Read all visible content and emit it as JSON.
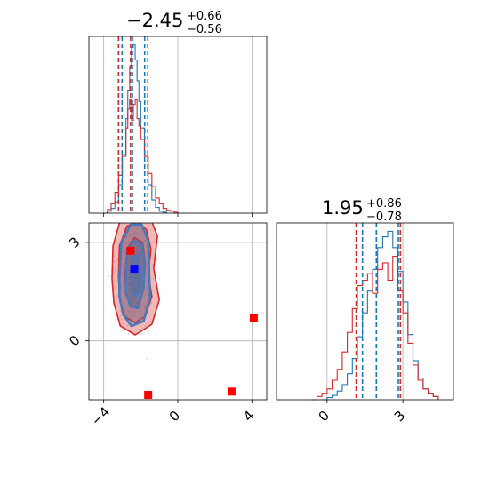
{
  "chart_data": {
    "type": "corner",
    "colors": {
      "series_a": "#1f77b4",
      "series_b": "#d62728",
      "marker_b": "#ff0000",
      "marker_a": "#0000ff",
      "grid": "#b0b0b0"
    },
    "parameters": [
      {
        "title": {
          "median": "−2.45",
          "upper": "+0.66",
          "lower": "−0.56"
        },
        "xlim": [
          -4.8,
          4.8
        ],
        "xticks": [
          -4,
          0,
          4
        ],
        "quantiles": {
          "series_a": [
            -3.01,
            -2.45,
            -1.79
          ],
          "series_b": [
            -3.2,
            -2.55,
            -1.62
          ]
        },
        "histogram": {
          "series_a": {
            "x": [
              -4.0,
              -3.8,
              -3.6,
              -3.4,
              -3.2,
              -3.0,
              -2.8,
              -2.7,
              -2.6,
              -2.5,
              -2.4,
              -2.3,
              -2.2,
              -2.1,
              -2.0,
              -1.8,
              -1.6,
              -1.4,
              -1.2,
              -1.0,
              -0.8,
              -0.6
            ],
            "y": [
              0,
              2,
              5,
              12,
              30,
              60,
              100,
              130,
              155,
              175,
              178,
              162,
              140,
              118,
              90,
              60,
              30,
              14,
              6,
              2,
              1,
              0
            ]
          },
          "series_b": {
            "x": [
              -4.0,
              -3.8,
              -3.6,
              -3.4,
              -3.2,
              -3.0,
              -2.8,
              -2.7,
              -2.6,
              -2.5,
              -2.4,
              -2.3,
              -2.2,
              -2.1,
              -2.0,
              -1.8,
              -1.6,
              -1.4,
              -1.2,
              -1.0,
              -0.8,
              -0.6,
              -0.4,
              -0.2,
              0.0
            ],
            "y": [
              0,
              4,
              10,
              22,
              40,
              62,
              90,
              110,
              120,
              98,
              115,
              120,
              100,
              92,
              78,
              60,
              42,
              28,
              16,
              10,
              5,
              3,
              2,
              1,
              0
            ]
          }
        }
      },
      {
        "title": {
          "median": "1.95",
          "upper": "+0.86",
          "lower": "−0.78"
        },
        "xlim": [
          -2.0,
          5.0
        ],
        "xticks": [
          0,
          3
        ],
        "quantiles": {
          "series_a": [
            1.4,
            1.95,
            2.82
          ],
          "series_b": [
            1.15,
            1.95,
            2.9
          ]
        },
        "histogram": {
          "series_a": {
            "x": [
              -0.2,
              0.0,
              0.2,
              0.4,
              0.6,
              0.8,
              1.0,
              1.2,
              1.4,
              1.6,
              1.8,
              2.0,
              2.2,
              2.4,
              2.6,
              2.8,
              3.0,
              3.2,
              3.4,
              3.6,
              3.8,
              4.0,
              4.2,
              4.4
            ],
            "y": [
              0,
              2,
              4,
              8,
              14,
              24,
              38,
              58,
              80,
              100,
              120,
              140,
              150,
              155,
              140,
              118,
              90,
              60,
              36,
              20,
              10,
              6,
              3,
              0
            ]
          },
          "series_b": {
            "x": [
              -0.6,
              -0.4,
              -0.2,
              0.0,
              0.2,
              0.4,
              0.6,
              0.8,
              1.0,
              1.2,
              1.4,
              1.6,
              1.8,
              2.0,
              2.2,
              2.4,
              2.6,
              2.8,
              3.0,
              3.2,
              3.4,
              3.6,
              3.8,
              4.0,
              4.2,
              4.4
            ],
            "y": [
              0,
              3,
              6,
              10,
              18,
              28,
              44,
              62,
              84,
              105,
              110,
              116,
              98,
              120,
              126,
              110,
              132,
              100,
              80,
              52,
              32,
              18,
              10,
              6,
              3,
              0
            ]
          }
        }
      }
    ],
    "joint": {
      "xlim": [
        -4.8,
        4.8
      ],
      "ylim": [
        -1.8,
        3.6
      ],
      "xticks": [
        -4,
        0,
        4
      ],
      "yticks": [
        0,
        3
      ],
      "contours": {
        "series_b": [
          [
            [
              -3.55,
              1.9
            ],
            [
              -3.5,
              2.9
            ],
            [
              -3.05,
              3.8
            ],
            [
              -2.3,
              4.1
            ],
            [
              -1.55,
              3.85
            ],
            [
              -1.1,
              3.2
            ],
            [
              -1.3,
              2.2
            ],
            [
              -1.0,
              1.25
            ],
            [
              -1.4,
              0.5
            ],
            [
              -2.3,
              0.18
            ],
            [
              -3.1,
              0.45
            ],
            [
              -3.45,
              1.15
            ]
          ],
          [
            [
              -3.2,
              1.95
            ],
            [
              -3.15,
              2.9
            ],
            [
              -2.75,
              3.5
            ],
            [
              -2.2,
              3.65
            ],
            [
              -1.7,
              3.4
            ],
            [
              -1.45,
              2.8
            ],
            [
              -1.6,
              2.05
            ],
            [
              -1.4,
              1.35
            ],
            [
              -1.75,
              0.75
            ],
            [
              -2.3,
              0.55
            ],
            [
              -2.9,
              0.75
            ],
            [
              -3.15,
              1.35
            ]
          ],
          [
            [
              -2.85,
              2.0
            ],
            [
              -2.75,
              2.8
            ],
            [
              -2.35,
              3.15
            ],
            [
              -1.9,
              3.0
            ],
            [
              -1.75,
              2.35
            ],
            [
              -1.85,
              1.6
            ],
            [
              -2.1,
              1.05
            ],
            [
              -2.55,
              1.05
            ],
            [
              -2.8,
              1.45
            ]
          ]
        ],
        "series_a": [
          [
            [
              -3.15,
              1.95
            ],
            [
              -3.05,
              3.0
            ],
            [
              -2.55,
              3.55
            ],
            [
              -1.95,
              3.55
            ],
            [
              -1.6,
              3.05
            ],
            [
              -1.55,
              2.2
            ],
            [
              -1.5,
              1.3
            ],
            [
              -1.85,
              0.6
            ],
            [
              -2.5,
              0.45
            ],
            [
              -2.95,
              0.8
            ],
            [
              -3.15,
              1.35
            ]
          ],
          [
            [
              -2.8,
              2.0
            ],
            [
              -2.75,
              2.75
            ],
            [
              -2.35,
              3.05
            ],
            [
              -1.95,
              2.95
            ],
            [
              -1.8,
              2.4
            ],
            [
              -1.85,
              1.6
            ],
            [
              -2.15,
              1.0
            ],
            [
              -2.55,
              1.05
            ],
            [
              -2.8,
              1.45
            ]
          ],
          [
            [
              -2.55,
              2.05
            ],
            [
              -2.45,
              2.55
            ],
            [
              -2.15,
              2.6
            ],
            [
              -2.0,
              2.2
            ],
            [
              -2.05,
              1.6
            ],
            [
              -2.3,
              1.35
            ],
            [
              -2.5,
              1.6
            ]
          ]
        ]
      },
      "points_b": [
        [
          -2.55,
          2.75
        ],
        [
          -1.6,
          -1.65
        ],
        [
          2.9,
          -1.55
        ],
        [
          4.1,
          0.7
        ]
      ],
      "points_a": [
        [
          -2.35,
          2.2
        ]
      ]
    }
  }
}
